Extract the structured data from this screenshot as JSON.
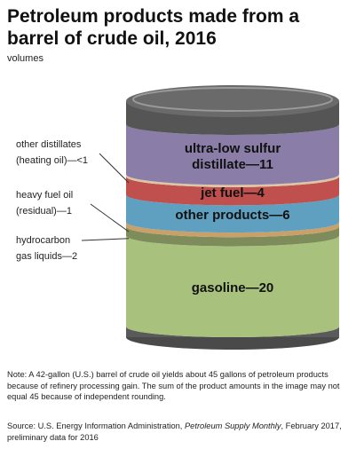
{
  "chart_data": {
    "type": "stacked-barrel",
    "title": "Petroleum products made from a barrel of crude oil, 2016",
    "subtitle": "volumes",
    "series": [
      {
        "name": "gasoline—20",
        "value": 20,
        "color": "#a8c27d"
      },
      {
        "name": "hydrocarbon\ngas liquids—2",
        "value": 2,
        "color": "#7d8c5a"
      },
      {
        "name": "heavy fuel oil\n(residual)—1",
        "value": 1,
        "color": "#c8a068"
      },
      {
        "name": "other products—6",
        "value": 6,
        "color": "#5fa0c0"
      },
      {
        "name": "jet fuel—4",
        "value": 4,
        "color": "#c0504d"
      },
      {
        "name": "other distillates\n(heating oil)—<1",
        "value": 0.5,
        "color": "#dcc6a4"
      },
      {
        "name": "ultra-low sulfur\ndistillate—11",
        "value": 11,
        "color": "#8a7ea8"
      }
    ],
    "note": "Note: A 42-gallon (U.S.) barrel of crude oil yields about 45 gallons of petroleum products because of refinery processing gain. The sum of the product amounts in the image may not equal 45 because of independent rounding.",
    "source": [
      "Source: U.S. Energy Information Administration, ",
      "Petroleum Supply Monthly",
      ", February 2017, preliminary data for 2016"
    ]
  }
}
